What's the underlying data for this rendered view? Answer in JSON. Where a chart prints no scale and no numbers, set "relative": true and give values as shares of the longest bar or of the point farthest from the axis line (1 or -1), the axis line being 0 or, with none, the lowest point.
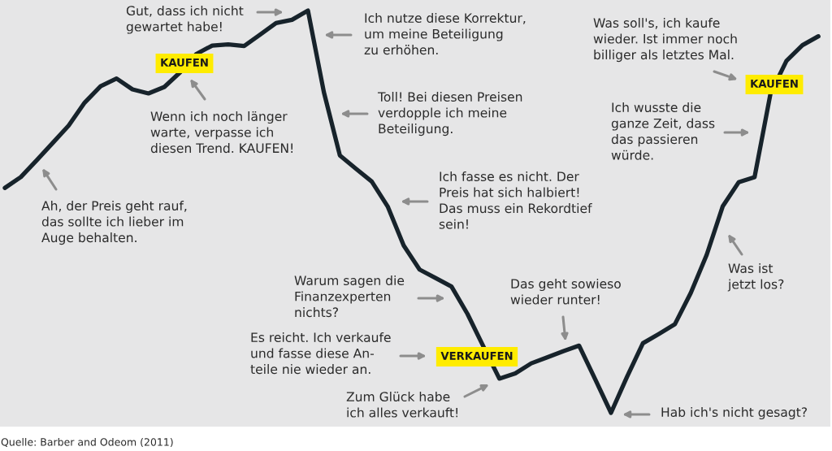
{
  "chart_data": {
    "type": "line",
    "relative": true,
    "categories": [
      null,
      null,
      null,
      null,
      null,
      null,
      null,
      null,
      null,
      null,
      null,
      null,
      null,
      null,
      null,
      null,
      null,
      null,
      null,
      null,
      null,
      null,
      null,
      null,
      null,
      null,
      null,
      null,
      null,
      null,
      null,
      null,
      null,
      null,
      null,
      null,
      null,
      null,
      null,
      null,
      null,
      null,
      null,
      null,
      null,
      null,
      null,
      null,
      null,
      null,
      null,
      null
    ],
    "series": [
      {
        "color": "#17232b",
        "values": [
          0.559,
          0.586,
          0.628,
          0.671,
          0.714,
          0.771,
          0.812,
          0.831,
          0.804,
          0.794,
          0.81,
          0.847,
          0.892,
          0.913,
          0.916,
          0.912,
          0.94,
          0.969,
          0.977,
          1,
          0.797,
          0.64,
          0.607,
          0.575,
          0.513,
          0.416,
          0.356,
          0.335,
          0.314,
          0.246,
          0.165,
          0.085,
          0.098,
          0.123,
          0.138,
          0.153,
          0.167,
          0.084,
          0,
          0.089,
          0.173,
          0.196,
          0.22,
          0.298,
          0.393,
          0.513,
          0.573,
          0.586,
          0.794,
          0.875,
          0.914,
          0.936
        ]
      }
    ],
    "annotations": [
      "Ah, der Preis geht rauf,\ndas sollte ich lieber im\nAuge behalten.",
      "Wenn ich noch länger\nwarte, verpasse ich\ndiesen Trend. KAUFEN!",
      "KAUFEN",
      "Gut, dass ich nicht\ngewartet habe!",
      "Ich nutze diese Korrektur,\num meine Beteiligung\nzu erhöhen.",
      "Toll! Bei diesen Preisen\nverdopple ich meine\nBeteiligung.",
      "Ich fasse es nicht. Der\nPreis hat sich halbiert!\nDas muss ein Rekordtief\nsein!",
      "Warum sagen die\nFinanzexperten\nnichts?",
      "Es reicht. Ich verkaufe\nund fasse diese An-\nteile nie wieder an.",
      "VERKAUFEN",
      "Zum Glück habe\nich alles verkauft!",
      "Das geht sowieso\nwieder runter!",
      "Hab ich's nicht gesagt?",
      "Was ist\njetzt los?",
      "Ich wusste die\nganze Zeit, dass\ndas passieren\nwürde.",
      "Was soll's, ich kaufe\nwieder. Ist immer noch\nbilliger als letztes Mal.",
      "KAUFEN",
      "Quelle: Barber and Odeom (2011)"
    ]
  }
}
